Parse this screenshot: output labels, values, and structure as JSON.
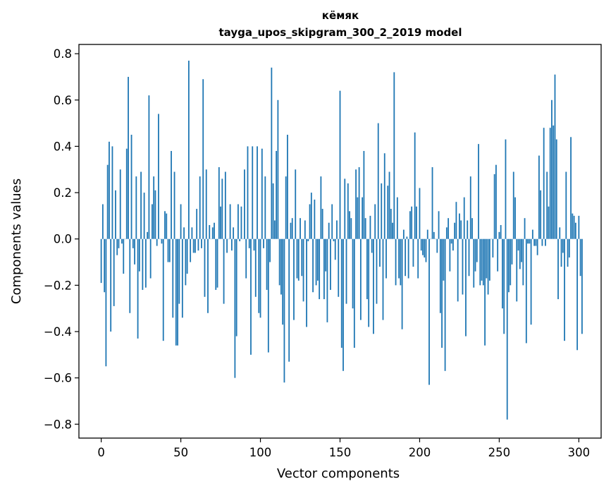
{
  "chart_data": {
    "type": "bar",
    "title": "кёмяк",
    "subtitle": "tayga_upos_skipgram_300_2_2019 model",
    "xlabel": "Vector components",
    "ylabel": "Components values",
    "xlim": [
      -14,
      314
    ],
    "ylim": [
      -0.86,
      0.84
    ],
    "xticks": [
      0,
      50,
      100,
      150,
      200,
      250,
      300
    ],
    "xtick_labels": [
      "0",
      "50",
      "100",
      "150",
      "200",
      "250",
      "300"
    ],
    "yticks": [
      -0.8,
      -0.6,
      -0.4,
      -0.2,
      0.0,
      0.2,
      0.4,
      0.6,
      0.8
    ],
    "ytick_labels": [
      "−0.8",
      "−0.6",
      "−0.4",
      "−0.2",
      "0.0",
      "0.2",
      "0.4",
      "0.6",
      "0.8"
    ],
    "grid": false,
    "bar_color": "#1f77b4",
    "values": [
      -0.19,
      0.15,
      -0.23,
      -0.55,
      0.32,
      0.42,
      -0.4,
      0.4,
      -0.29,
      0.21,
      -0.07,
      -0.04,
      0.3,
      -0.02,
      -0.15,
      0.0,
      0.39,
      0.7,
      -0.32,
      0.45,
      -0.04,
      -0.11,
      0.27,
      -0.43,
      -0.14,
      0.29,
      -0.22,
      0.2,
      -0.21,
      0.03,
      0.62,
      -0.17,
      0.15,
      0.27,
      0.21,
      -0.03,
      0.54,
      0.0,
      -0.02,
      -0.44,
      0.12,
      0.11,
      -0.1,
      -0.1,
      0.38,
      -0.34,
      0.29,
      -0.46,
      -0.46,
      -0.28,
      0.15,
      -0.34,
      0.05,
      -0.2,
      -0.15,
      0.77,
      -0.1,
      0.05,
      -0.06,
      -0.06,
      0.13,
      -0.05,
      0.27,
      -0.04,
      0.69,
      -0.25,
      0.3,
      -0.32,
      0.06,
      0.0,
      0.05,
      0.07,
      -0.22,
      -0.21,
      0.31,
      0.14,
      0.26,
      -0.28,
      0.29,
      -0.06,
      0.0,
      0.15,
      -0.05,
      0.05,
      -0.6,
      -0.42,
      0.15,
      -0.01,
      0.14,
      0.0,
      0.3,
      -0.17,
      0.4,
      -0.04,
      -0.5,
      0.4,
      -0.05,
      -0.25,
      0.4,
      -0.32,
      -0.34,
      0.39,
      -0.04,
      0.27,
      -0.22,
      -0.49,
      -0.1,
      0.74,
      0.24,
      0.08,
      0.38,
      0.6,
      -0.2,
      -0.24,
      -0.37,
      -0.62,
      0.27,
      0.45,
      -0.53,
      0.07,
      0.09,
      -0.35,
      0.3,
      -0.17,
      -0.18,
      0.09,
      -0.16,
      -0.27,
      0.08,
      -0.38,
      -0.01,
      0.15,
      0.2,
      -0.23,
      0.17,
      -0.2,
      -0.18,
      -0.26,
      0.27,
      0.13,
      -0.26,
      -0.14,
      -0.36,
      0.07,
      -0.22,
      0.15,
      -0.01,
      -0.09,
      0.08,
      -0.25,
      0.64,
      -0.47,
      -0.57,
      0.26,
      -0.28,
      0.24,
      0.12,
      0.09,
      -0.3,
      -0.47,
      0.3,
      0.18,
      0.31,
      -0.35,
      0.18,
      0.38,
      0.09,
      -0.26,
      -0.38,
      0.1,
      -0.06,
      -0.41,
      0.15,
      -0.28,
      0.5,
      -0.12,
      0.24,
      -0.35,
      0.37,
      -0.17,
      0.23,
      0.29,
      0.13,
      0.07,
      0.72,
      -0.2,
      0.18,
      -0.17,
      -0.2,
      -0.39,
      0.04,
      -0.16,
      0.01,
      -0.17,
      0.12,
      0.14,
      -0.12,
      0.46,
      0.14,
      -0.17,
      0.22,
      -0.05,
      -0.07,
      -0.08,
      -0.1,
      0.04,
      -0.63,
      0.0,
      0.31,
      0.03,
      0.0,
      -0.06,
      0.12,
      -0.32,
      -0.47,
      -0.18,
      -0.57,
      0.05,
      0.09,
      -0.14,
      -0.02,
      -0.05,
      0.07,
      0.16,
      -0.27,
      0.11,
      0.08,
      -0.24,
      0.18,
      -0.42,
      0.08,
      -0.16,
      0.27,
      0.09,
      -0.21,
      -0.14,
      -0.1,
      0.41,
      -0.2,
      -0.18,
      -0.2,
      -0.46,
      -0.17,
      -0.24,
      -0.18,
      0.0,
      -0.08,
      0.28,
      0.32,
      -0.14,
      0.03,
      0.06,
      -0.3,
      -0.41,
      0.43,
      -0.78,
      -0.23,
      -0.2,
      -0.11,
      0.29,
      0.18,
      -0.27,
      -0.05,
      -0.13,
      -0.1,
      -0.2,
      0.09,
      -0.45,
      -0.02,
      -0.02,
      -0.37,
      0.04,
      -0.03,
      -0.03,
      -0.07,
      0.36,
      0.21,
      -0.03,
      0.48,
      -0.03,
      0.29,
      0.14,
      0.48,
      0.6,
      0.49,
      0.71,
      0.43,
      -0.26,
      0.05,
      -0.12,
      -0.06,
      -0.44,
      0.29,
      -0.12,
      -0.08,
      0.44,
      0.11,
      0.1,
      0.07,
      -0.48,
      0.1,
      -0.16,
      -0.41
    ]
  }
}
